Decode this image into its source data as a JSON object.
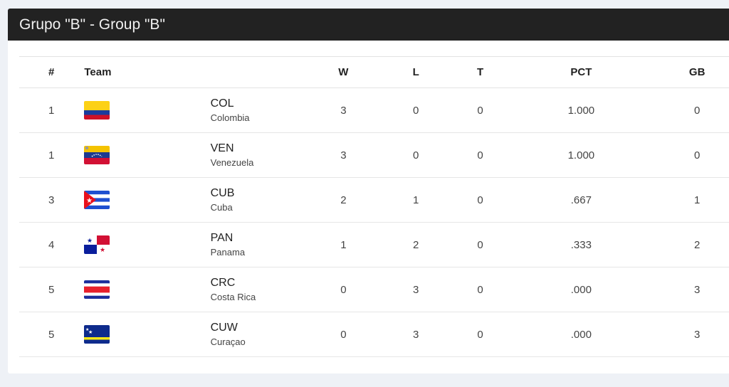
{
  "title": "Grupo \"B\" - Group \"B\"",
  "columns": [
    "#",
    "Team",
    "W",
    "L",
    "T",
    "PCT",
    "GB"
  ],
  "rows": [
    {
      "rank": "1",
      "abbr": "COL",
      "name": "Colombia",
      "flag": "colombia-flag",
      "w": "3",
      "l": "0",
      "t": "0",
      "pct": "1.000",
      "gb": "0"
    },
    {
      "rank": "1",
      "abbr": "VEN",
      "name": "Venezuela",
      "flag": "venezuela-flag",
      "w": "3",
      "l": "0",
      "t": "0",
      "pct": "1.000",
      "gb": "0"
    },
    {
      "rank": "3",
      "abbr": "CUB",
      "name": "Cuba",
      "flag": "cuba-flag",
      "w": "2",
      "l": "1",
      "t": "0",
      "pct": ".667",
      "gb": "1"
    },
    {
      "rank": "4",
      "abbr": "PAN",
      "name": "Panama",
      "flag": "panama-flag",
      "w": "1",
      "l": "2",
      "t": "0",
      "pct": ".333",
      "gb": "2"
    },
    {
      "rank": "5",
      "abbr": "CRC",
      "name": "Costa Rica",
      "flag": "costa-rica-flag",
      "w": "0",
      "l": "3",
      "t": "0",
      "pct": ".000",
      "gb": "3"
    },
    {
      "rank": "5",
      "abbr": "CUW",
      "name": "Curaçao",
      "flag": "curacao-flag",
      "w": "0",
      "l": "3",
      "t": "0",
      "pct": ".000",
      "gb": "3"
    }
  ]
}
